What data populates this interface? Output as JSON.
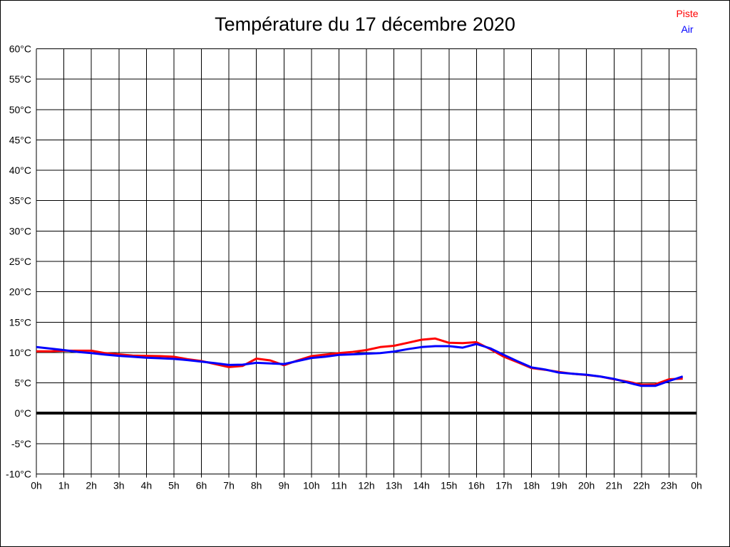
{
  "window": {
    "background": "#ffffff",
    "border_color": "#000000"
  },
  "header": {
    "title": "Température du 17 décembre 2020"
  },
  "legend": {
    "position": "top-right",
    "items": [
      {
        "label": "Piste",
        "color": "#ff0000"
      },
      {
        "label": "Air",
        "color": "#0000ff"
      }
    ]
  },
  "chart_data": {
    "type": "line",
    "title": "Température du 17 décembre 2020",
    "xlabel": "",
    "ylabel": "",
    "xlim": [
      0,
      24
    ],
    "ylim": [
      -10,
      60
    ],
    "x_tick_step_hours": 1,
    "y_tick_step_degrees": 5,
    "grid": true,
    "grid_color": "#000000",
    "axis_color": "#000000",
    "zero_line": {
      "value": 0,
      "color": "#000000",
      "width": 4
    },
    "x_tick_labels": [
      "0h",
      "1h",
      "2h",
      "3h",
      "4h",
      "5h",
      "6h",
      "7h",
      "8h",
      "9h",
      "10h",
      "11h",
      "12h",
      "13h",
      "14h",
      "15h",
      "16h",
      "17h",
      "18h",
      "19h",
      "20h",
      "21h",
      "22h",
      "23h",
      "0h"
    ],
    "y_tick_labels": [
      "-10°C",
      "-5°C",
      "0°C",
      "5°C",
      "10°C",
      "15°C",
      "20°C",
      "25°C",
      "30°C",
      "35°C",
      "40°C",
      "45°C",
      "50°C",
      "55°C",
      "60°C"
    ],
    "x": [
      0,
      0.5,
      1,
      1.5,
      2,
      2.5,
      3,
      3.5,
      4,
      4.5,
      5,
      5.5,
      6,
      6.5,
      7,
      7.5,
      8,
      8.5,
      9,
      9.5,
      10,
      10.5,
      11,
      11.5,
      12,
      12.5,
      13,
      13.5,
      14,
      14.5,
      15,
      15.5,
      16,
      16.5,
      17,
      17.5,
      18,
      18.5,
      19,
      19.5,
      20,
      20.5,
      21,
      21.5,
      22,
      22.5,
      23,
      23.5
    ],
    "series": [
      {
        "name": "Piste",
        "color": "#ff0000",
        "line_width": 3,
        "values": [
          10.2,
          10.2,
          10.3,
          10.3,
          10.3,
          9.9,
          9.7,
          9.5,
          9.45,
          9.4,
          9.3,
          8.9,
          8.6,
          8.1,
          7.6,
          7.8,
          9.0,
          8.7,
          7.9,
          8.7,
          9.4,
          9.65,
          9.9,
          10.1,
          10.4,
          10.9,
          11.1,
          11.6,
          12.1,
          12.3,
          11.6,
          11.55,
          11.7,
          10.55,
          9.3,
          8.4,
          7.45,
          7.15,
          6.8,
          6.5,
          6.3,
          6.05,
          5.6,
          5.2,
          4.7,
          4.75,
          5.6,
          5.7
        ]
      },
      {
        "name": "Air",
        "color": "#0000ff",
        "line_width": 3,
        "values": [
          10.9,
          10.65,
          10.4,
          10.1,
          9.9,
          9.65,
          9.45,
          9.3,
          9.15,
          9.05,
          8.95,
          8.75,
          8.5,
          8.25,
          7.95,
          8.0,
          8.3,
          8.2,
          8.1,
          8.6,
          9.1,
          9.3,
          9.6,
          9.7,
          9.8,
          9.9,
          10.15,
          10.55,
          10.9,
          11.05,
          11.05,
          10.8,
          11.4,
          10.7,
          9.6,
          8.55,
          7.55,
          7.2,
          6.7,
          6.5,
          6.35,
          6.05,
          5.65,
          5.05,
          4.5,
          4.5,
          5.3,
          6.05
        ]
      }
    ]
  }
}
